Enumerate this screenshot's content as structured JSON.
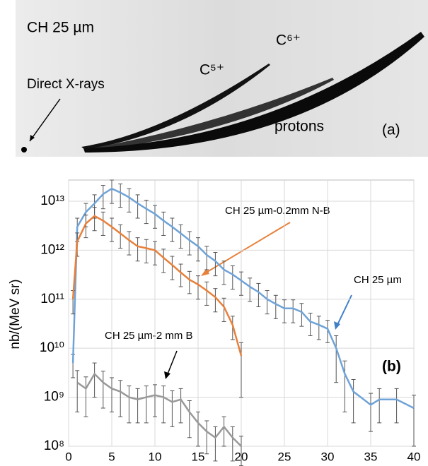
{
  "image_panel": {
    "title": "CH 25 µm",
    "labels": [
      "Direct X-rays",
      "C⁵⁺",
      "C⁶⁺",
      "protons"
    ],
    "panel_label": "(a)"
  },
  "chart_data": {
    "type": "line",
    "y_label": "nb/(MeV sr)",
    "panel_label": "(b)",
    "log_y": true,
    "xlim": [
      0,
      40
    ],
    "xticks": [
      0,
      5,
      10,
      15,
      20,
      25,
      30,
      35,
      40
    ],
    "ylim": [
      100000000,
      27000000000000
    ],
    "yticks": [
      {
        "value": 100000000,
        "label": "10⁸"
      },
      {
        "value": 1000000000,
        "label": "10⁹"
      },
      {
        "value": 10000000000,
        "label": "10¹⁰"
      },
      {
        "value": 100000000000,
        "label": "10¹¹"
      },
      {
        "value": 1000000000000,
        "label": "10¹²"
      },
      {
        "value": 10000000000000,
        "label": "10¹³"
      }
    ],
    "annotations": [
      "CH 25 µm-0.2mm N-B",
      "CH 25 µm",
      "CH 25 µm-2 mm B"
    ],
    "series": [
      {
        "color": "#6fa3d8",
        "x": [
          0.5,
          1,
          2,
          3,
          4,
          5,
          6,
          7,
          8,
          9,
          10,
          11,
          12,
          13,
          14,
          15,
          16,
          17,
          18,
          19,
          20,
          21,
          22,
          23,
          24,
          25,
          26,
          27,
          28,
          29,
          30,
          31,
          32,
          33,
          35,
          36,
          38,
          40
        ],
        "values": [
          5000000000,
          3000000000000,
          6000000000000,
          9000000000000,
          14000000000000,
          18000000000000,
          15000000000000,
          12000000000000,
          9000000000000,
          7000000000000,
          5500000000000,
          4000000000000,
          3000000000000,
          2200000000000,
          1600000000000,
          1200000000000,
          800000000000,
          600000000000,
          400000000000,
          320000000000,
          240000000000,
          180000000000,
          140000000000,
          100000000000,
          80000000000,
          65000000000,
          65000000000,
          55000000000,
          35000000000,
          30000000000,
          25000000000,
          10000000000,
          3000000000,
          1300000000,
          700000000,
          900000000,
          900000000,
          600000000
        ],
        "errors": [
          2500000000,
          1500000000000,
          3000000000000,
          4500000000000,
          7000000000000,
          9000000000000,
          7500000000000,
          6000000000000,
          4500000000000,
          3500000000000,
          2700000000000,
          2000000000000,
          1500000000000,
          1100000000000,
          800000000000,
          600000000000,
          400000000000,
          300000000000,
          200000000000,
          160000000000,
          120000000000,
          90000000000,
          70000000000,
          50000000000,
          40000000000,
          32000000000,
          32000000000,
          27000000000,
          17000000000,
          15000000000,
          12000000000,
          8000000000,
          2500000000,
          1000000000,
          500000000,
          600000000,
          600000000,
          500000000
        ]
      },
      {
        "color": "#e8803a",
        "x": [
          0.5,
          1,
          2,
          3,
          4,
          5,
          6,
          7,
          8,
          9,
          10,
          11,
          12,
          13,
          14,
          15,
          16,
          17,
          18,
          19,
          20
        ],
        "values": [
          100000000000,
          1500000000000,
          3500000000000,
          5000000000000,
          4000000000000,
          3000000000000,
          2200000000000,
          1600000000000,
          1200000000000,
          1100000000000,
          1000000000000,
          700000000000,
          500000000000,
          350000000000,
          250000000000,
          200000000000,
          150000000000,
          110000000000,
          70000000000,
          30000000000,
          7000000000
        ],
        "errors": [
          50000000000,
          750000000000,
          1700000000000,
          2500000000000,
          2000000000000,
          1500000000000,
          1100000000000,
          800000000000,
          600000000000,
          550000000000,
          500000000000,
          350000000000,
          250000000000,
          170000000000,
          120000000000,
          100000000000,
          75000000000,
          55000000000,
          35000000000,
          15000000000,
          6000000000
        ]
      },
      {
        "color": "#999999",
        "x": [
          1,
          2,
          3,
          4,
          5,
          6,
          7,
          8,
          9,
          10,
          11,
          12,
          13,
          14,
          15,
          16,
          17,
          18,
          19,
          20
        ],
        "values": [
          2000000000,
          1500000000,
          3000000000,
          2000000000,
          1500000000,
          1300000000,
          1000000000,
          900000000,
          1000000000,
          1100000000,
          1000000000,
          800000000,
          900000000,
          500000000,
          300000000,
          200000000,
          150000000,
          250000000,
          150000000,
          100000000
        ],
        "errors": [
          1500000000,
          1100000000,
          2000000000,
          1400000000,
          1000000000,
          900000000,
          700000000,
          600000000,
          700000000,
          700000000,
          700000000,
          550000000,
          600000000,
          350000000,
          200000000,
          130000000,
          100000000,
          150000000,
          100000000,
          60000000
        ]
      }
    ]
  }
}
